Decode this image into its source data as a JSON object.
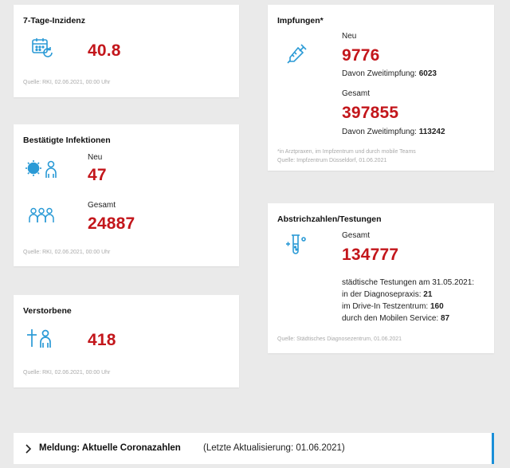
{
  "incidence": {
    "title": "7-Tage-Inzidenz",
    "value": "40.8",
    "source": "Quelle: RKI, 02.06.2021, 00:00 Uhr",
    "icon": "calendar-refresh-icon"
  },
  "infections": {
    "title": "Bestätigte Infektionen",
    "new_label": "Neu",
    "new_value": "47",
    "total_label": "Gesamt",
    "total_value": "24887",
    "source": "Quelle: RKI, 02.06.2021, 00:00 Uhr"
  },
  "deaths": {
    "title": "Verstorbene",
    "value": "418",
    "source": "Quelle: RKI, 02.06.2021, 00:00 Uhr"
  },
  "vaccinations": {
    "title": "Impfungen*",
    "new_label": "Neu",
    "new_value": "9776",
    "new_second_label": "Davon Zweitimpfung:",
    "new_second_value": "6023",
    "total_label": "Gesamt",
    "total_value": "397855",
    "total_second_label": "Davon Zweitimpfung:",
    "total_second_value": "113242",
    "note": "*in Arztpraxen, im Impfzentrum und durch mobile Teams",
    "source": "Quelle: Impfzentrum Düsseldorf, 01.06.2021"
  },
  "tests": {
    "title": "Abstrichzahlen/Testungen",
    "total_label": "Gesamt",
    "total_value": "134777",
    "line1": "städtische Testungen am 31.05.2021:",
    "line2_label": "in der Diagnosepraxis:",
    "line2_value": "21",
    "line3_label": "im Drive-In Testzentrum:",
    "line3_value": "160",
    "line4_label": "durch den Mobilen Service:",
    "line4_value": "87",
    "source": "Quelle: Städtisches Diagnosezentrum, 01.06.2021"
  },
  "news_bar": {
    "title": "Meldung: Aktuelle Coronazahlen",
    "updated": "(Letzte Aktualisierung: 01.06.2021)"
  },
  "colors": {
    "accent": "#c3161b",
    "icon": "#2a9ad6",
    "bar_border": "#1a8fd8"
  }
}
